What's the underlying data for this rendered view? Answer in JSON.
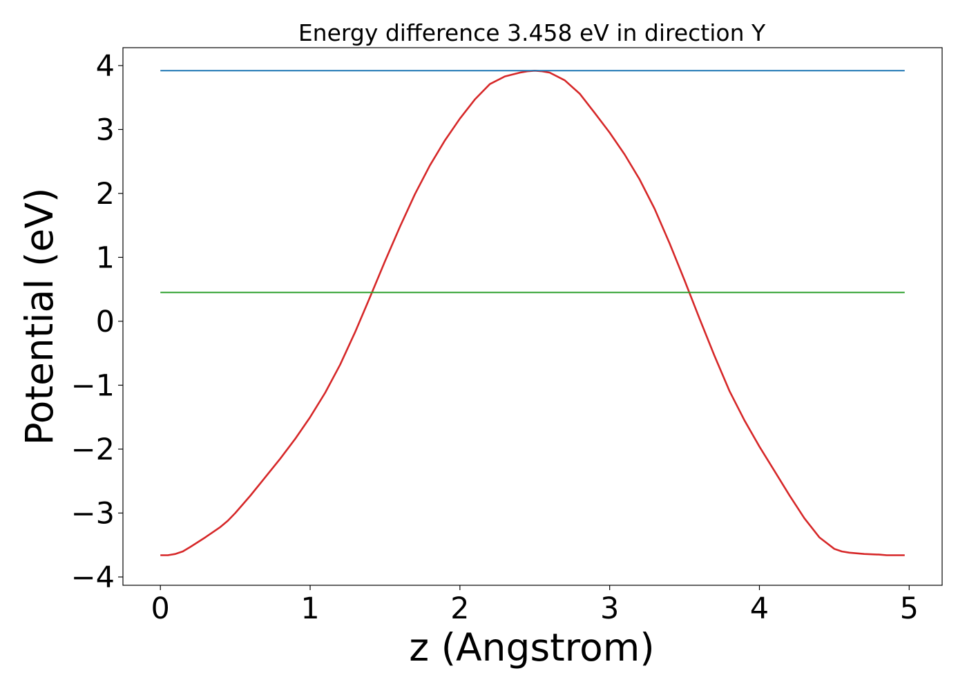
{
  "chart_data": {
    "type": "line",
    "title": "Energy difference 3.458 eV in direction Y",
    "xlabel": "z (Angstrom)",
    "ylabel": "Potential (eV)",
    "xlim": [
      -0.25,
      5.22
    ],
    "ylim": [
      -4.13,
      4.28
    ],
    "xticks": [
      0,
      1,
      2,
      3,
      4,
      5
    ],
    "xtick_labels": [
      "0",
      "1",
      "2",
      "3",
      "4",
      "5"
    ],
    "yticks": [
      -4,
      -3,
      -2,
      -1,
      0,
      1,
      2,
      3,
      4
    ],
    "ytick_labels": [
      "−4",
      "−3",
      "−2",
      "−1",
      "0",
      "1",
      "2",
      "3",
      "4"
    ],
    "grid": false,
    "series": [
      {
        "color": "#d62728",
        "x": [
          0.0,
          0.05,
          0.1,
          0.15,
          0.2,
          0.3,
          0.4,
          0.45,
          0.5,
          0.6,
          0.7,
          0.8,
          0.9,
          1.0,
          1.1,
          1.2,
          1.3,
          1.4,
          1.5,
          1.6,
          1.7,
          1.8,
          1.9,
          2.0,
          2.1,
          2.2,
          2.3,
          2.4,
          2.45,
          2.5,
          2.55,
          2.6,
          2.7,
          2.8,
          2.9,
          3.0,
          3.1,
          3.2,
          3.3,
          3.4,
          3.5,
          3.6,
          3.7,
          3.8,
          3.9,
          4.0,
          4.1,
          4.2,
          4.3,
          4.4,
          4.5,
          4.55,
          4.6,
          4.7,
          4.8,
          4.85,
          4.9,
          4.95,
          4.97
        ],
        "y": [
          -3.66,
          -3.66,
          -3.64,
          -3.6,
          -3.53,
          -3.38,
          -3.22,
          -3.12,
          -3.0,
          -2.73,
          -2.44,
          -2.15,
          -1.84,
          -1.5,
          -1.12,
          -0.68,
          -0.17,
          0.38,
          0.94,
          1.48,
          1.99,
          2.44,
          2.83,
          3.17,
          3.47,
          3.71,
          3.83,
          3.89,
          3.91,
          3.92,
          3.91,
          3.89,
          3.77,
          3.56,
          3.26,
          2.95,
          2.61,
          2.22,
          1.76,
          1.22,
          0.64,
          0.04,
          -0.54,
          -1.09,
          -1.55,
          -1.96,
          -2.34,
          -2.72,
          -3.08,
          -3.38,
          -3.56,
          -3.6,
          -3.62,
          -3.64,
          -3.65,
          -3.66,
          -3.66,
          -3.66,
          -3.66
        ]
      },
      {
        "color": "#1f77b4",
        "x": [
          0.0,
          4.97
        ],
        "y": [
          3.92,
          3.92
        ]
      },
      {
        "color": "#2ca02c",
        "x": [
          0.0,
          4.97
        ],
        "y": [
          0.45,
          0.45
        ]
      }
    ]
  }
}
